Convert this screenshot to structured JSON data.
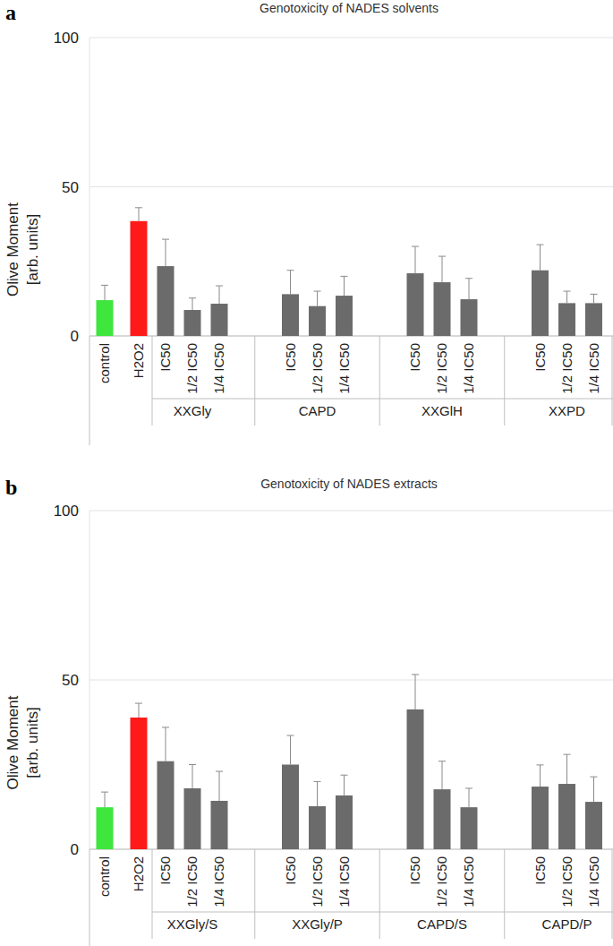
{
  "chart_data": [
    {
      "type": "bar",
      "panel": "a",
      "title": "Genotoxicity of NADES solvents",
      "y_label": [
        "Olive Moment",
        "[arb. units]"
      ],
      "ylim": [
        0,
        100
      ],
      "yticks": [
        0,
        50,
        100
      ],
      "grid": true,
      "categories": [
        "control",
        "H2O2",
        "IC50",
        "1/2 IC50",
        "1/4 IC50",
        "IC50",
        "1/2 IC50",
        "1/4 IC50",
        "IC50",
        "1/2 IC50",
        "1/4 IC50",
        "IC50",
        "1/2 IC50",
        "1/4 IC50"
      ],
      "values": [
        12,
        38.5,
        23.4,
        8.7,
        10.8,
        14,
        10,
        13.5,
        21,
        18,
        12.3,
        22,
        11,
        11
      ],
      "errors": [
        5,
        4.5,
        9,
        4,
        6,
        8,
        5,
        6.5,
        9,
        8.7,
        7,
        8.6,
        4,
        3
      ],
      "colors": [
        "#3ee63e",
        "#ff1a1a",
        "#6b6b6b",
        "#6b6b6b",
        "#6b6b6b",
        "#6b6b6b",
        "#6b6b6b",
        "#6b6b6b",
        "#6b6b6b",
        "#6b6b6b",
        "#6b6b6b",
        "#6b6b6b",
        "#6b6b6b",
        "#6b6b6b"
      ],
      "groups": [
        {
          "label": "XXGly",
          "members": [
            2,
            3,
            4
          ]
        },
        {
          "label": "CAPD",
          "members": [
            5,
            6,
            7
          ]
        },
        {
          "label": "XXGlH",
          "members": [
            8,
            9,
            10
          ]
        },
        {
          "label": "XXPD",
          "members": [
            11,
            12,
            13
          ]
        }
      ]
    },
    {
      "type": "bar",
      "panel": "b",
      "title": "Genotoxicity of NADES extracts",
      "y_label": [
        "Olive Moment",
        "[arb. units]"
      ],
      "ylim": [
        0,
        100
      ],
      "yticks": [
        0,
        50,
        100
      ],
      "grid": true,
      "categories": [
        "control",
        "H2O2",
        "IC50",
        "1/2 IC50",
        "1/4 IC50",
        "IC50",
        "1/2 IC50",
        "1/4 IC50",
        "IC50",
        "1/2 IC50",
        "1/4 IC50",
        "IC50",
        "1/2 IC50",
        "1/4 IC50"
      ],
      "values": [
        12.4,
        38.9,
        26,
        18,
        14.3,
        25,
        12.7,
        15.9,
        41.3,
        17.7,
        12.4,
        18.5,
        19.3,
        14
      ],
      "errors": [
        4.5,
        4.2,
        10,
        7,
        8.7,
        8.6,
        7.3,
        6,
        10.3,
        8.3,
        5.6,
        6.4,
        8.7,
        7.4
      ],
      "colors": [
        "#3ee63e",
        "#ff1a1a",
        "#6b6b6b",
        "#6b6b6b",
        "#6b6b6b",
        "#6b6b6b",
        "#6b6b6b",
        "#6b6b6b",
        "#6b6b6b",
        "#6b6b6b",
        "#6b6b6b",
        "#6b6b6b",
        "#6b6b6b",
        "#6b6b6b"
      ],
      "groups": [
        {
          "label": "XXGly/S",
          "members": [
            2,
            3,
            4
          ]
        },
        {
          "label": "XXGly/P",
          "members": [
            5,
            6,
            7
          ]
        },
        {
          "label": "CAPD/S",
          "members": [
            8,
            9,
            10
          ]
        },
        {
          "label": "CAPD/P",
          "members": [
            11,
            12,
            13
          ]
        }
      ]
    }
  ]
}
